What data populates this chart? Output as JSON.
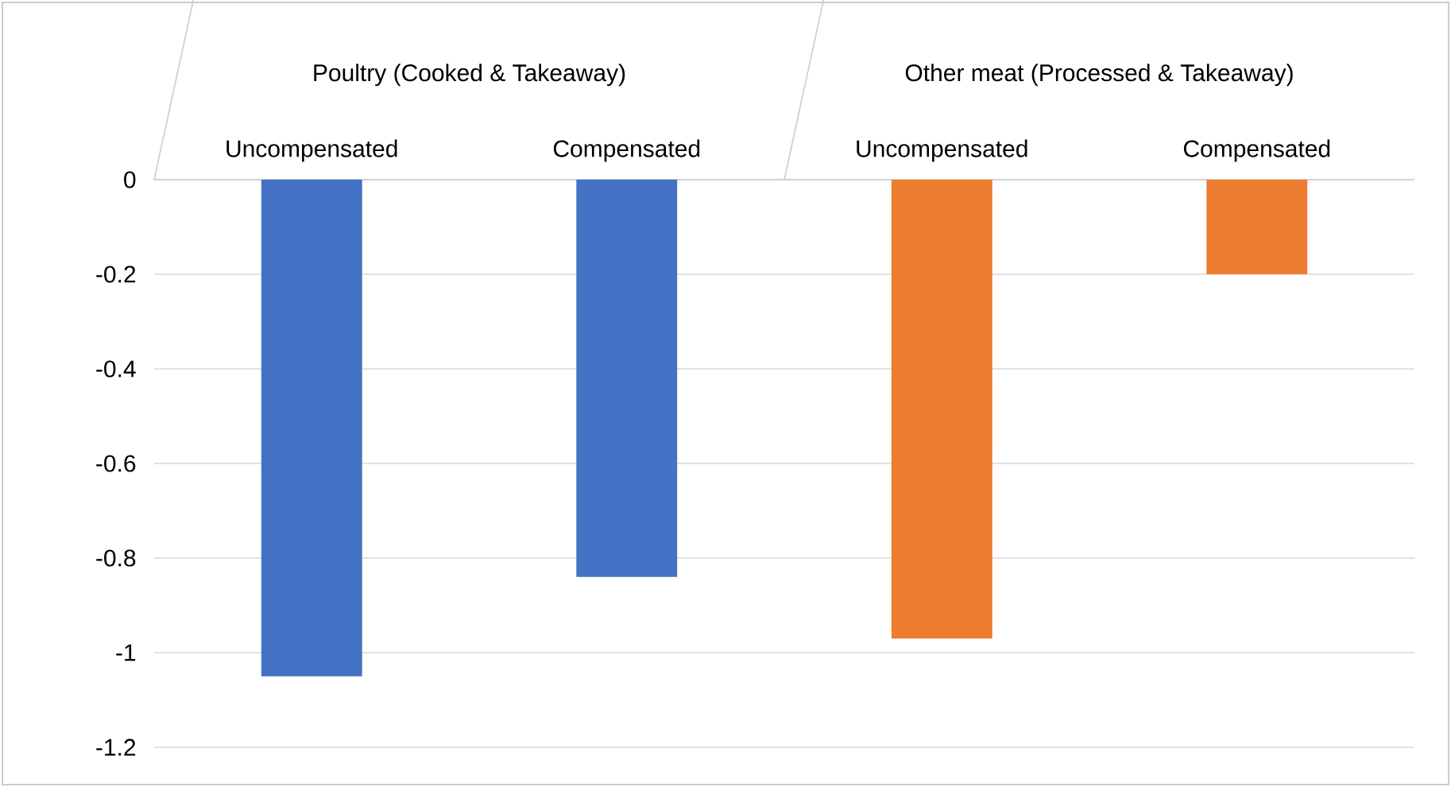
{
  "chart_data": {
    "type": "bar",
    "categories": [
      "Uncompensated",
      "Compensated",
      "Uncompensated",
      "Compensated"
    ],
    "values": [
      -1.05,
      -0.84,
      -0.97,
      -0.2
    ],
    "colors": [
      "#4472c4",
      "#4472c4",
      "#ed7d31",
      "#ed7d31"
    ],
    "annotations": [
      "Poultry (Cooked & Takeaway)",
      "Other meat (Processed & Takeaway)"
    ],
    "ylim": [
      -1.2,
      0
    ],
    "yticks": [
      0,
      -0.2,
      -0.4,
      -0.6,
      -0.8,
      -1,
      -1.2
    ],
    "grid": "y"
  }
}
